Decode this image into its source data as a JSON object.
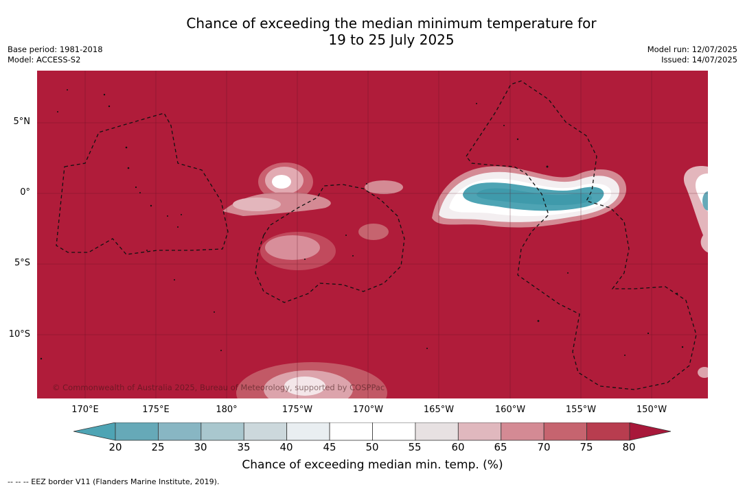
{
  "title_line1": "Chance of exceeding the median minimum temperature for",
  "title_line2": "19 to 25 July 2025",
  "base_period": "Base period: 1981-2018",
  "model": "Model: ACCESS-S2",
  "model_run": "Model run: 12/07/2025",
  "issued": "Issued: 14/07/2025",
  "map": {
    "lat_labels": [
      "5°N",
      "0°",
      "5°S",
      "10°S"
    ],
    "lon_labels": [
      "170°E",
      "175°E",
      "180°",
      "175°W",
      "170°W",
      "165°W",
      "160°W",
      "155°W",
      "150°W"
    ],
    "copyright": "© Commonwealth of Australia 2025, Bureau of Meteorology, supported by COSPPac",
    "background_color": "#b01c3a",
    "eez_line_style": "dashed"
  },
  "colorbar": {
    "ticks": [
      "20",
      "25",
      "30",
      "35",
      "40",
      "45",
      "50",
      "55",
      "60",
      "65",
      "70",
      "75",
      "80"
    ],
    "colors": [
      "#66a9b8",
      "#88b6c3",
      "#a9c7ce",
      "#ccd8dc",
      "#e9eef1",
      "#ffffff",
      "#ffffff",
      "#e7e1e2",
      "#e0b8be",
      "#d48a94",
      "#c6646f",
      "#b83d4f"
    ],
    "under_color": "#4ea4b4",
    "over_color": "#a8183a",
    "label": "Chance of exceeding median min. temp. (%)"
  },
  "footnote": "--  --  -- EEZ border V11 (Flanders Marine Institute, 2019)."
}
